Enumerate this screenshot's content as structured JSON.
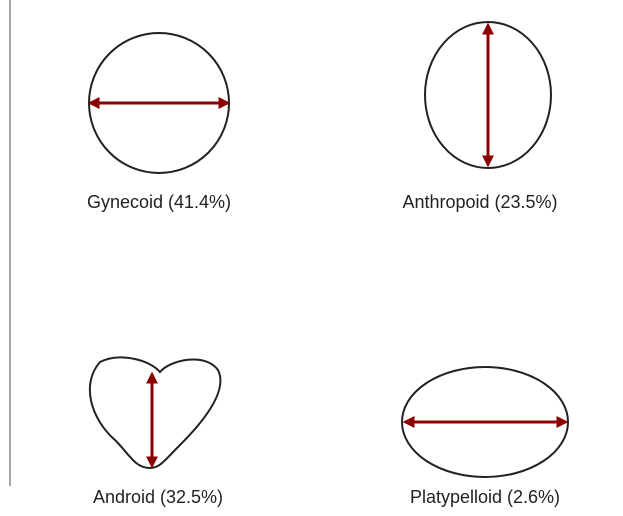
{
  "shapes": [
    {
      "label": "Gynecoid (41.4%)"
    },
    {
      "label": "Anthropoid (23.5%)"
    },
    {
      "label": "Android (32.5%)"
    },
    {
      "label": "Platypelloid (2.6%)"
    }
  ]
}
